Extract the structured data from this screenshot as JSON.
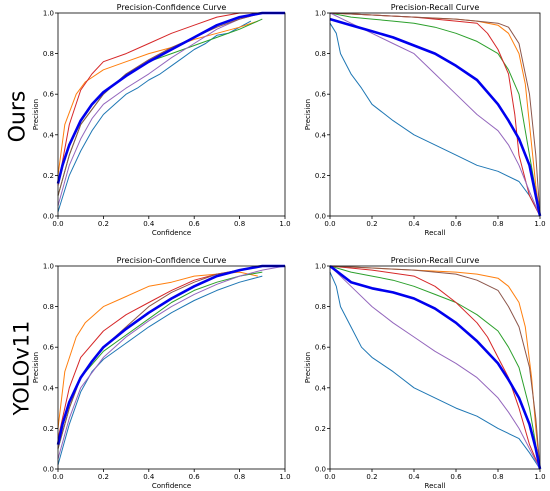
{
  "row_labels": [
    "Ours",
    "YOLOv11"
  ],
  "chart_data": [
    {
      "type": "line",
      "title": "Precision-Confidence Curve",
      "xlabel": "Confidence",
      "ylabel": "Precision",
      "xlim": [
        0,
        1
      ],
      "ylim": [
        0,
        1
      ],
      "xticks": [
        "0.0",
        "0.2",
        "0.4",
        "0.6",
        "0.8",
        "1.0"
      ],
      "yticks": [
        "0.0",
        "0.2",
        "0.4",
        "0.6",
        "0.8",
        "1.0"
      ],
      "grid": false,
      "series": [
        {
          "color": "#1f77b4",
          "width": 1,
          "x": [
            0.0,
            0.05,
            0.1,
            0.15,
            0.2,
            0.25,
            0.3,
            0.35,
            0.4,
            0.45,
            0.5,
            0.55,
            0.6,
            0.65,
            0.7,
            0.75,
            0.8,
            0.85
          ],
          "y": [
            0.02,
            0.2,
            0.32,
            0.42,
            0.5,
            0.55,
            0.6,
            0.63,
            0.67,
            0.7,
            0.74,
            0.78,
            0.82,
            0.85,
            0.89,
            0.9,
            0.93,
            0.96
          ]
        },
        {
          "color": "#ff7f0e",
          "width": 1,
          "x": [
            0.0,
            0.03,
            0.08,
            0.12,
            0.2,
            0.3,
            0.4,
            0.5,
            0.6,
            0.7,
            0.8,
            0.88
          ],
          "y": [
            0.2,
            0.45,
            0.6,
            0.66,
            0.72,
            0.76,
            0.8,
            0.83,
            0.87,
            0.9,
            0.93,
            0.96
          ]
        },
        {
          "color": "#2ca02c",
          "width": 1,
          "x": [
            0.0,
            0.05,
            0.1,
            0.2,
            0.3,
            0.4,
            0.5,
            0.6,
            0.7,
            0.8,
            0.9
          ],
          "y": [
            0.1,
            0.3,
            0.45,
            0.6,
            0.7,
            0.76,
            0.8,
            0.84,
            0.88,
            0.92,
            0.97
          ]
        },
        {
          "color": "#d62728",
          "width": 1,
          "x": [
            0.0,
            0.05,
            0.1,
            0.15,
            0.2,
            0.3,
            0.4,
            0.5,
            0.6,
            0.7,
            0.8,
            0.9,
            1.0
          ],
          "y": [
            0.15,
            0.45,
            0.62,
            0.7,
            0.76,
            0.8,
            0.85,
            0.9,
            0.94,
            0.98,
            1.0,
            1.0,
            1.0
          ]
        },
        {
          "color": "#9467bd",
          "width": 1,
          "x": [
            0.0,
            0.05,
            0.1,
            0.15,
            0.2,
            0.3,
            0.4,
            0.5,
            0.6,
            0.7,
            0.8,
            0.9,
            1.0
          ],
          "y": [
            0.05,
            0.25,
            0.38,
            0.48,
            0.55,
            0.63,
            0.7,
            0.78,
            0.85,
            0.92,
            0.97,
            1.0,
            1.0
          ]
        },
        {
          "color": "#8c564b",
          "width": 1,
          "x": [
            0.0,
            0.05,
            0.1,
            0.2,
            0.3,
            0.4,
            0.5,
            0.6,
            0.7,
            0.8,
            0.9,
            1.0
          ],
          "y": [
            0.1,
            0.3,
            0.45,
            0.6,
            0.7,
            0.77,
            0.83,
            0.88,
            0.93,
            0.97,
            1.0,
            1.0
          ]
        },
        {
          "color": "#0000ee",
          "width": 2.6,
          "x": [
            0.0,
            0.02,
            0.05,
            0.1,
            0.15,
            0.2,
            0.3,
            0.4,
            0.5,
            0.6,
            0.7,
            0.8,
            0.9,
            1.0
          ],
          "y": [
            0.16,
            0.25,
            0.35,
            0.47,
            0.55,
            0.61,
            0.69,
            0.76,
            0.82,
            0.88,
            0.94,
            0.98,
            1.0,
            1.0
          ]
        }
      ]
    },
    {
      "type": "line",
      "title": "Precision-Recall Curve",
      "xlabel": "Recall",
      "ylabel": "Precision",
      "xlim": [
        0,
        1
      ],
      "ylim": [
        0,
        1
      ],
      "xticks": [
        "0.0",
        "0.2",
        "0.4",
        "0.6",
        "0.8",
        "1.0"
      ],
      "yticks": [
        "0.0",
        "0.2",
        "0.4",
        "0.6",
        "0.8",
        "1.0"
      ],
      "grid": false,
      "series": [
        {
          "color": "#1f77b4",
          "width": 1,
          "x": [
            0.0,
            0.03,
            0.05,
            0.1,
            0.15,
            0.2,
            0.3,
            0.4,
            0.5,
            0.6,
            0.7,
            0.8,
            0.9,
            0.95,
            1.0
          ],
          "y": [
            0.95,
            0.9,
            0.8,
            0.7,
            0.63,
            0.55,
            0.47,
            0.4,
            0.35,
            0.3,
            0.25,
            0.22,
            0.17,
            0.1,
            0.0
          ]
        },
        {
          "color": "#ff7f0e",
          "width": 1,
          "x": [
            0.0,
            0.2,
            0.4,
            0.6,
            0.7,
            0.8,
            0.85,
            0.9,
            0.93,
            0.96,
            0.98,
            1.0
          ],
          "y": [
            1.0,
            0.99,
            0.98,
            0.97,
            0.96,
            0.94,
            0.9,
            0.8,
            0.65,
            0.35,
            0.15,
            0.0
          ]
        },
        {
          "color": "#2ca02c",
          "width": 1,
          "x": [
            0.0,
            0.1,
            0.2,
            0.3,
            0.4,
            0.5,
            0.6,
            0.7,
            0.8,
            0.85,
            0.9,
            0.95,
            1.0
          ],
          "y": [
            1.0,
            0.98,
            0.97,
            0.96,
            0.95,
            0.93,
            0.9,
            0.86,
            0.8,
            0.72,
            0.6,
            0.3,
            0.0
          ]
        },
        {
          "color": "#d62728",
          "width": 1,
          "x": [
            0.0,
            0.2,
            0.4,
            0.5,
            0.6,
            0.7,
            0.75,
            0.8,
            0.85,
            0.88,
            0.9,
            0.95,
            1.0
          ],
          "y": [
            1.0,
            0.99,
            0.98,
            0.97,
            0.96,
            0.95,
            0.9,
            0.82,
            0.7,
            0.5,
            0.3,
            0.1,
            0.0
          ]
        },
        {
          "color": "#9467bd",
          "width": 1,
          "x": [
            0.0,
            0.1,
            0.2,
            0.3,
            0.4,
            0.5,
            0.6,
            0.7,
            0.8,
            0.85,
            0.9,
            0.95,
            1.0
          ],
          "y": [
            1.0,
            0.95,
            0.9,
            0.85,
            0.8,
            0.7,
            0.6,
            0.5,
            0.42,
            0.35,
            0.25,
            0.12,
            0.0
          ]
        },
        {
          "color": "#8c564b",
          "width": 1,
          "x": [
            0.0,
            0.2,
            0.4,
            0.6,
            0.7,
            0.8,
            0.85,
            0.9,
            0.95,
            0.98,
            1.0
          ],
          "y": [
            1.0,
            0.99,
            0.98,
            0.97,
            0.96,
            0.95,
            0.93,
            0.85,
            0.6,
            0.3,
            0.0
          ]
        },
        {
          "color": "#0000ee",
          "width": 2.6,
          "x": [
            0.0,
            0.1,
            0.2,
            0.3,
            0.4,
            0.5,
            0.6,
            0.7,
            0.8,
            0.85,
            0.9,
            0.95,
            0.98,
            1.0
          ],
          "y": [
            0.97,
            0.94,
            0.91,
            0.88,
            0.84,
            0.8,
            0.74,
            0.67,
            0.55,
            0.47,
            0.38,
            0.25,
            0.1,
            0.0
          ]
        }
      ]
    },
    {
      "type": "line",
      "title": "Precision-Confidence Curve",
      "xlabel": "Confidence",
      "ylabel": "Precision",
      "xlim": [
        0,
        1
      ],
      "ylim": [
        0,
        1
      ],
      "xticks": [
        "0.0",
        "0.2",
        "0.4",
        "0.6",
        "0.8",
        "1.0"
      ],
      "yticks": [
        "0.0",
        "0.2",
        "0.4",
        "0.6",
        "0.8",
        "1.0"
      ],
      "grid": false,
      "series": [
        {
          "color": "#1f77b4",
          "width": 1,
          "x": [
            0.0,
            0.05,
            0.1,
            0.15,
            0.2,
            0.3,
            0.4,
            0.5,
            0.6,
            0.7,
            0.8,
            0.9
          ],
          "y": [
            0.02,
            0.22,
            0.38,
            0.48,
            0.54,
            0.62,
            0.7,
            0.77,
            0.83,
            0.88,
            0.92,
            0.95
          ]
        },
        {
          "color": "#ff7f0e",
          "width": 1,
          "x": [
            0.0,
            0.03,
            0.08,
            0.12,
            0.2,
            0.3,
            0.4,
            0.5,
            0.6,
            0.7,
            0.8,
            0.88
          ],
          "y": [
            0.2,
            0.48,
            0.65,
            0.72,
            0.8,
            0.85,
            0.9,
            0.92,
            0.95,
            0.96,
            0.97,
            0.95
          ]
        },
        {
          "color": "#2ca02c",
          "width": 1,
          "x": [
            0.0,
            0.05,
            0.1,
            0.2,
            0.3,
            0.4,
            0.5,
            0.6,
            0.7,
            0.8,
            0.9
          ],
          "y": [
            0.1,
            0.3,
            0.45,
            0.58,
            0.66,
            0.74,
            0.82,
            0.88,
            0.92,
            0.95,
            0.97
          ]
        },
        {
          "color": "#d62728",
          "width": 1,
          "x": [
            0.0,
            0.05,
            0.1,
            0.2,
            0.3,
            0.4,
            0.5,
            0.6,
            0.7,
            0.8,
            0.9,
            1.0
          ],
          "y": [
            0.15,
            0.4,
            0.55,
            0.68,
            0.76,
            0.82,
            0.88,
            0.93,
            0.96,
            0.98,
            1.0,
            1.0
          ]
        },
        {
          "color": "#9467bd",
          "width": 1,
          "x": [
            0.0,
            0.05,
            0.1,
            0.2,
            0.3,
            0.4,
            0.5,
            0.6,
            0.7,
            0.8,
            0.9,
            1.0
          ],
          "y": [
            0.05,
            0.25,
            0.4,
            0.55,
            0.65,
            0.73,
            0.8,
            0.86,
            0.91,
            0.95,
            0.98,
            1.0
          ]
        },
        {
          "color": "#8c564b",
          "width": 1,
          "x": [
            0.0,
            0.05,
            0.1,
            0.2,
            0.3,
            0.4,
            0.5,
            0.6,
            0.7,
            0.8,
            0.9,
            1.0
          ],
          "y": [
            0.1,
            0.3,
            0.45,
            0.6,
            0.7,
            0.8,
            0.87,
            0.92,
            0.96,
            0.98,
            1.0,
            1.0
          ]
        },
        {
          "color": "#0000ee",
          "width": 2.6,
          "x": [
            0.0,
            0.02,
            0.05,
            0.1,
            0.15,
            0.2,
            0.3,
            0.4,
            0.5,
            0.6,
            0.7,
            0.8,
            0.9,
            1.0
          ],
          "y": [
            0.12,
            0.22,
            0.33,
            0.45,
            0.53,
            0.6,
            0.69,
            0.77,
            0.84,
            0.9,
            0.95,
            0.98,
            1.0,
            1.0
          ]
        }
      ]
    },
    {
      "type": "line",
      "title": "Precision-Recall Curve",
      "xlabel": "Recall",
      "ylabel": "Precision",
      "xlim": [
        0,
        1
      ],
      "ylim": [
        0,
        1
      ],
      "xticks": [
        "0.0",
        "0.2",
        "0.4",
        "0.6",
        "0.8",
        "1.0"
      ],
      "yticks": [
        "0.0",
        "0.2",
        "0.4",
        "0.6",
        "0.8",
        "1.0"
      ],
      "grid": false,
      "series": [
        {
          "color": "#1f77b4",
          "width": 1,
          "x": [
            0.0,
            0.03,
            0.05,
            0.1,
            0.15,
            0.2,
            0.3,
            0.4,
            0.5,
            0.6,
            0.7,
            0.8,
            0.9,
            0.95,
            1.0
          ],
          "y": [
            0.97,
            0.9,
            0.8,
            0.7,
            0.6,
            0.55,
            0.48,
            0.4,
            0.35,
            0.3,
            0.26,
            0.2,
            0.15,
            0.08,
            0.0
          ]
        },
        {
          "color": "#ff7f0e",
          "width": 1,
          "x": [
            0.0,
            0.2,
            0.4,
            0.6,
            0.7,
            0.8,
            0.85,
            0.9,
            0.93,
            0.96,
            0.98,
            1.0
          ],
          "y": [
            1.0,
            0.99,
            0.98,
            0.97,
            0.96,
            0.94,
            0.9,
            0.82,
            0.7,
            0.45,
            0.2,
            0.0
          ]
        },
        {
          "color": "#2ca02c",
          "width": 1,
          "x": [
            0.0,
            0.1,
            0.2,
            0.3,
            0.4,
            0.5,
            0.6,
            0.7,
            0.8,
            0.85,
            0.9,
            0.95,
            1.0
          ],
          "y": [
            1.0,
            0.97,
            0.95,
            0.93,
            0.9,
            0.86,
            0.82,
            0.76,
            0.68,
            0.6,
            0.5,
            0.3,
            0.0
          ]
        },
        {
          "color": "#d62728",
          "width": 1,
          "x": [
            0.0,
            0.2,
            0.4,
            0.5,
            0.6,
            0.7,
            0.75,
            0.8,
            0.85,
            0.9,
            0.95,
            1.0
          ],
          "y": [
            1.0,
            0.98,
            0.95,
            0.9,
            0.82,
            0.72,
            0.65,
            0.55,
            0.45,
            0.3,
            0.12,
            0.0
          ]
        },
        {
          "color": "#9467bd",
          "width": 1,
          "x": [
            0.0,
            0.1,
            0.2,
            0.3,
            0.4,
            0.5,
            0.6,
            0.7,
            0.8,
            0.85,
            0.9,
            0.95,
            1.0
          ],
          "y": [
            1.0,
            0.9,
            0.8,
            0.72,
            0.65,
            0.58,
            0.52,
            0.45,
            0.35,
            0.28,
            0.2,
            0.1,
            0.0
          ]
        },
        {
          "color": "#8c564b",
          "width": 1,
          "x": [
            0.0,
            0.2,
            0.4,
            0.6,
            0.7,
            0.8,
            0.85,
            0.9,
            0.95,
            0.98,
            1.0
          ],
          "y": [
            1.0,
            0.99,
            0.98,
            0.96,
            0.93,
            0.88,
            0.8,
            0.7,
            0.5,
            0.25,
            0.0
          ]
        },
        {
          "color": "#0000ee",
          "width": 2.6,
          "x": [
            0.0,
            0.1,
            0.2,
            0.3,
            0.4,
            0.5,
            0.6,
            0.7,
            0.8,
            0.85,
            0.9,
            0.95,
            0.98,
            1.0
          ],
          "y": [
            1.0,
            0.92,
            0.89,
            0.87,
            0.84,
            0.79,
            0.72,
            0.63,
            0.52,
            0.44,
            0.35,
            0.22,
            0.1,
            0.0
          ]
        }
      ]
    }
  ]
}
